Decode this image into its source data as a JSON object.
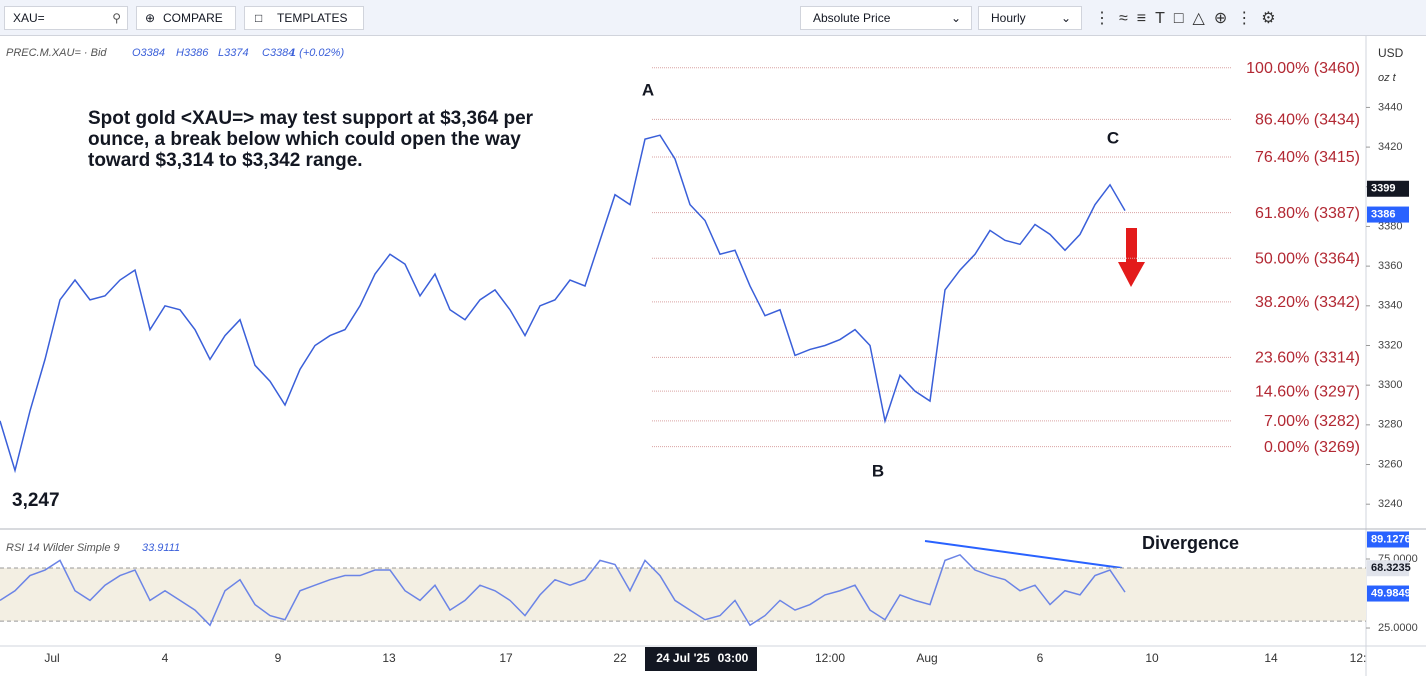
{
  "toolbar": {
    "symbol": "XAU=",
    "compare": "COMPARE",
    "templates": "TEMPLATES",
    "price_mode": "Absolute Price",
    "interval": "Hourly"
  },
  "chart_data": [
    {
      "type": "line",
      "legend": {
        "symbol": "PREC.M.XAU= · Bid",
        "ohlc": [
          "O3384",
          "H3386",
          "L3374",
          "C3384",
          "1 (+0.02%)"
        ]
      },
      "annotation": [
        "Spot gold <XAU=> may test support at $3,364 per",
        "ounce, a break below which could open the way",
        "toward $3,314 to $3,342 range."
      ],
      "wave_labels": [
        "A",
        "B",
        "C"
      ],
      "low_label": "3,247",
      "color": "#3a5fd9",
      "values": [
        3282,
        3257,
        3287,
        3313,
        3343,
        3353,
        3343,
        3345,
        3353,
        3358,
        3328,
        3340,
        3338,
        3328,
        3313,
        3325,
        3333,
        3310,
        3302,
        3290,
        3308,
        3320,
        3325,
        3328,
        3340,
        3356,
        3366,
        3361,
        3345,
        3356,
        3338,
        3333,
        3343,
        3348,
        3338,
        3325,
        3340,
        3343,
        3353,
        3350,
        3373,
        3396,
        3391,
        3424,
        3426,
        3414,
        3391,
        3383,
        3366,
        3368,
        3350,
        3335,
        3338,
        3315,
        3318,
        3320,
        3323,
        3328,
        3320,
        3282,
        3305,
        3297,
        3292,
        3348,
        3358,
        3366,
        3378,
        3373,
        3371,
        3381,
        3376,
        3368,
        3376,
        3391,
        3401,
        3388
      ],
      "ylim": [
        3228,
        3476
      ],
      "yticks": [
        3240,
        3260,
        3280,
        3300,
        3320,
        3340,
        3360,
        3380,
        3400,
        3420,
        3440
      ],
      "fib_levels": [
        {
          "label": "100.00% (3460)",
          "value": 3460
        },
        {
          "label": "86.40% (3434)",
          "value": 3434
        },
        {
          "label": "76.40% (3415)",
          "value": 3415
        },
        {
          "label": "61.80% (3387)",
          "value": 3387
        },
        {
          "label": "50.00% (3364)",
          "value": 3364
        },
        {
          "label": "38.20% (3342)",
          "value": 3342
        },
        {
          "label": "23.60% (3314)",
          "value": 3314
        },
        {
          "label": "14.60% (3297)",
          "value": 3297
        },
        {
          "label": "7.00% (3282)",
          "value": 3282
        },
        {
          "label": "0.00% (3269)",
          "value": 3269
        }
      ],
      "price_tags": [
        {
          "value": 3399,
          "color": "#131722"
        },
        {
          "value": 3386,
          "color": "#2962ff"
        }
      ],
      "currency": "USD",
      "unit": "oz t",
      "xtick_labels": [
        "Jul",
        "4",
        "9",
        "13",
        "17",
        "22",
        "24 Jul '25",
        "03:00",
        "12:00",
        "Aug",
        "6",
        "10",
        "14",
        "12:"
      ]
    },
    {
      "type": "line",
      "title": "RSI 14 Wilder Simple 9",
      "current": "33.9111",
      "annotation": "Divergence",
      "color": "#6b84e6",
      "values": [
        45,
        52,
        63,
        67,
        74,
        52,
        45,
        56,
        63,
        67,
        45,
        52,
        45,
        38,
        27,
        52,
        60,
        42,
        34,
        31,
        52,
        56,
        60,
        63,
        63,
        67,
        67,
        52,
        45,
        56,
        38,
        45,
        56,
        52,
        45,
        34,
        49,
        60,
        56,
        60,
        74,
        71,
        52,
        74,
        63,
        45,
        38,
        31,
        34,
        45,
        27,
        34,
        45,
        38,
        42,
        49,
        52,
        56,
        38,
        31,
        49,
        45,
        42,
        74,
        78,
        67,
        63,
        60,
        52,
        56,
        42,
        52,
        49,
        63,
        67,
        51
      ],
      "ylim": [
        12.7,
        96
      ],
      "band": [
        30,
        68.5
      ],
      "yticks": [
        {
          "value": 25,
          "label": "25.0000"
        },
        {
          "value": 75,
          "label": "75.0000"
        }
      ],
      "value_tags": [
        {
          "value": 89.1276,
          "color": "#2962ff"
        },
        {
          "value": 68.3235,
          "color": "#e0e3eb"
        },
        {
          "value": 49.9849,
          "color": "#2962ff"
        }
      ]
    }
  ]
}
